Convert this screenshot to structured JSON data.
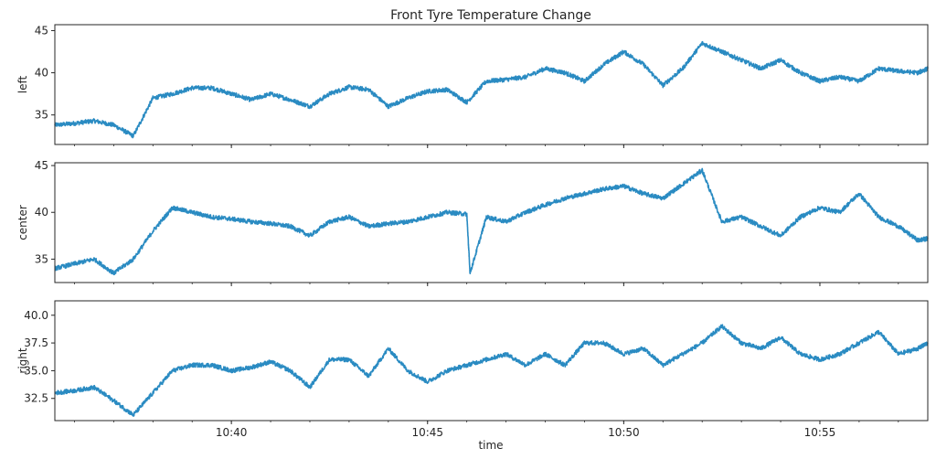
{
  "chart_data": {
    "type": "line",
    "title": "Front Tyre Temperature Change",
    "xlabel": "time",
    "line_color": "#2a8bc2",
    "x_range": [
      "10:35:30",
      "10:57:45"
    ],
    "x_ticks": [
      "10:40",
      "10:45",
      "10:50",
      "10:55"
    ],
    "grid": false,
    "legend": "none",
    "panels": [
      {
        "ylabel": "left",
        "ylim": [
          31.5,
          45.7
        ],
        "yticks": [
          "35",
          "40",
          "45"
        ],
        "series": [
          {
            "x": [
              "10:35:30",
              "10:36:00",
              "10:36:30",
              "10:37:00",
              "10:37:30",
              "10:38:00",
              "10:38:30",
              "10:39:00",
              "10:39:30",
              "10:40:00",
              "10:40:30",
              "10:41:00",
              "10:41:30",
              "10:42:00",
              "10:42:30",
              "10:43:00",
              "10:43:30",
              "10:44:00",
              "10:44:30",
              "10:45:00",
              "10:45:30",
              "10:46:00",
              "10:46:30",
              "10:47:00",
              "10:47:30",
              "10:48:00",
              "10:48:30",
              "10:49:00",
              "10:49:30",
              "10:50:00",
              "10:50:30",
              "10:51:00",
              "10:51:30",
              "10:52:00",
              "10:52:30",
              "10:53:00",
              "10:53:30",
              "10:54:00",
              "10:54:30",
              "10:55:00",
              "10:55:30",
              "10:56:00",
              "10:56:30",
              "10:57:00",
              "10:57:30",
              "10:57:45"
            ],
            "values": [
              33.8,
              34.0,
              34.3,
              33.8,
              32.5,
              37.0,
              37.5,
              38.2,
              38.2,
              37.5,
              36.8,
              37.5,
              36.8,
              36.0,
              37.5,
              38.3,
              38.0,
              36.0,
              37.0,
              37.8,
              38.0,
              36.5,
              39.0,
              39.2,
              39.5,
              40.5,
              40.0,
              39.0,
              41.0,
              42.5,
              41.0,
              38.5,
              40.5,
              43.5,
              42.5,
              41.5,
              40.5,
              41.5,
              40.0,
              39.0,
              39.5,
              39.0,
              40.5,
              40.2,
              40.0,
              40.5
            ]
          }
        ]
      },
      {
        "ylabel": "center",
        "ylim": [
          32.5,
          45.3
        ],
        "yticks": [
          "35",
          "40",
          "45"
        ],
        "series": [
          {
            "x": [
              "10:35:30",
              "10:36:00",
              "10:36:30",
              "10:37:00",
              "10:37:30",
              "10:38:00",
              "10:38:30",
              "10:39:00",
              "10:39:30",
              "10:40:00",
              "10:40:30",
              "10:41:00",
              "10:41:30",
              "10:42:00",
              "10:42:30",
              "10:43:00",
              "10:43:30",
              "10:44:00",
              "10:44:30",
              "10:45:00",
              "10:45:30",
              "10:46:00",
              "10:46:05",
              "10:46:30",
              "10:47:00",
              "10:47:30",
              "10:48:00",
              "10:48:30",
              "10:49:00",
              "10:49:30",
              "10:50:00",
              "10:50:30",
              "10:51:00",
              "10:51:30",
              "10:52:00",
              "10:52:30",
              "10:53:00",
              "10:53:30",
              "10:54:00",
              "10:54:30",
              "10:55:00",
              "10:55:30",
              "10:56:00",
              "10:56:30",
              "10:57:00",
              "10:57:30",
              "10:57:45"
            ],
            "values": [
              34.0,
              34.5,
              35.0,
              33.5,
              35.0,
              38.0,
              40.5,
              40.0,
              39.5,
              39.3,
              39.0,
              38.8,
              38.5,
              37.5,
              39.0,
              39.5,
              38.5,
              38.8,
              39.0,
              39.5,
              40.0,
              39.8,
              33.5,
              39.5,
              39.0,
              40.0,
              40.8,
              41.5,
              42.0,
              42.5,
              42.8,
              42.0,
              41.5,
              43.0,
              44.5,
              39.0,
              39.5,
              38.5,
              37.5,
              39.5,
              40.5,
              40.0,
              42.0,
              39.5,
              38.5,
              37.0,
              37.2
            ]
          }
        ]
      },
      {
        "ylabel": "right",
        "ylim": [
          30.5,
          41.3
        ],
        "yticks": [
          "32.5",
          "35.0",
          "37.5",
          "40.0"
        ],
        "series": [
          {
            "x": [
              "10:35:30",
              "10:36:00",
              "10:36:30",
              "10:37:00",
              "10:37:30",
              "10:38:00",
              "10:38:30",
              "10:39:00",
              "10:39:30",
              "10:40:00",
              "10:40:30",
              "10:41:00",
              "10:41:30",
              "10:42:00",
              "10:42:30",
              "10:43:00",
              "10:43:30",
              "10:44:00",
              "10:44:30",
              "10:45:00",
              "10:45:30",
              "10:46:00",
              "10:46:30",
              "10:47:00",
              "10:47:30",
              "10:48:00",
              "10:48:30",
              "10:49:00",
              "10:49:30",
              "10:50:00",
              "10:50:30",
              "10:51:00",
              "10:51:30",
              "10:52:00",
              "10:52:30",
              "10:53:00",
              "10:53:30",
              "10:54:00",
              "10:54:30",
              "10:55:00",
              "10:55:30",
              "10:56:00",
              "10:56:30",
              "10:57:00",
              "10:57:30",
              "10:57:45"
            ],
            "values": [
              33.0,
              33.2,
              33.5,
              32.3,
              31.0,
              33.0,
              35.0,
              35.5,
              35.5,
              35.0,
              35.3,
              35.8,
              35.0,
              33.5,
              36.0,
              36.0,
              34.5,
              37.0,
              35.0,
              34.0,
              35.0,
              35.5,
              36.0,
              36.5,
              35.5,
              36.5,
              35.5,
              37.5,
              37.5,
              36.5,
              37.0,
              35.5,
              36.5,
              37.5,
              39.0,
              37.5,
              37.0,
              38.0,
              36.5,
              36.0,
              36.5,
              37.5,
              38.5,
              36.5,
              37.0,
              37.5
            ]
          }
        ]
      }
    ]
  }
}
